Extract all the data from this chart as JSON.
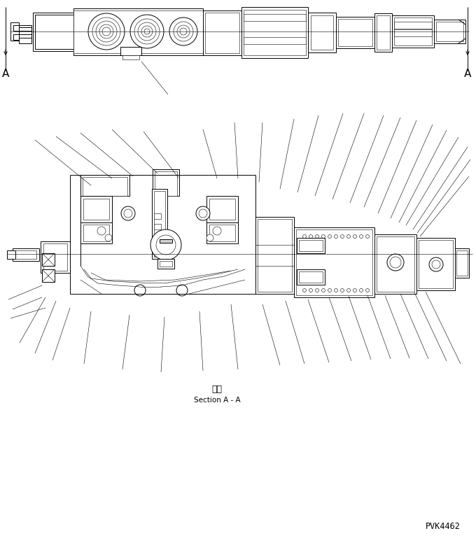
{
  "bg_color": "#ffffff",
  "line_color": "#000000",
  "lw": 0.7,
  "tlw": 0.4,
  "text_section_japanese": "断面",
  "text_section_english": "Section A - A",
  "text_part_number": "PVK4462",
  "figsize": [
    6.8,
    7.69
  ],
  "dpi": 100
}
